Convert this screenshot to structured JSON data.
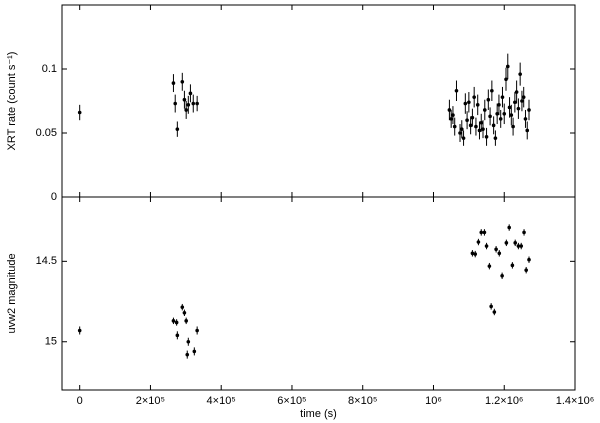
{
  "chart_data": [
    {
      "type": "scatter",
      "ylabel": "XRT rate (count s⁻¹)",
      "color": "#000000",
      "xlim": [
        -50000,
        1400000
      ],
      "ylim": [
        0,
        0.15
      ],
      "yticks": [
        0,
        0.05,
        0.1
      ],
      "x": [
        0,
        265000,
        270000,
        276000,
        290000,
        296000,
        301000,
        307000,
        313000,
        321000,
        332000,
        1045000,
        1050000,
        1055000,
        1060000,
        1065000,
        1075000,
        1080000,
        1085000,
        1090000,
        1095000,
        1100000,
        1105000,
        1110000,
        1115000,
        1120000,
        1125000,
        1130000,
        1135000,
        1140000,
        1145000,
        1150000,
        1155000,
        1160000,
        1165000,
        1170000,
        1175000,
        1180000,
        1185000,
        1190000,
        1195000,
        1200000,
        1205000,
        1210000,
        1215000,
        1220000,
        1225000,
        1230000,
        1235000,
        1240000,
        1245000,
        1250000,
        1255000,
        1260000,
        1265000,
        1270000
      ],
      "values": [
        0.066,
        0.089,
        0.073,
        0.053,
        0.09,
        0.076,
        0.068,
        0.072,
        0.081,
        0.073,
        0.073,
        0.068,
        0.061,
        0.064,
        0.055,
        0.083,
        0.05,
        0.053,
        0.046,
        0.073,
        0.06,
        0.074,
        0.056,
        0.062,
        0.078,
        0.055,
        0.072,
        0.052,
        0.058,
        0.053,
        0.068,
        0.047,
        0.076,
        0.063,
        0.083,
        0.056,
        0.046,
        0.065,
        0.072,
        0.061,
        0.078,
        0.065,
        0.092,
        0.102,
        0.07,
        0.064,
        0.055,
        0.074,
        0.082,
        0.069,
        0.096,
        0.075,
        0.078,
        0.061,
        0.052,
        0.068
      ],
      "errors": [
        0.006,
        0.007,
        0.007,
        0.006,
        0.007,
        0.007,
        0.007,
        0.007,
        0.007,
        0.007,
        0.006,
        0.008,
        0.007,
        0.007,
        0.007,
        0.008,
        0.007,
        0.007,
        0.006,
        0.008,
        0.007,
        0.008,
        0.007,
        0.007,
        0.008,
        0.007,
        0.008,
        0.007,
        0.007,
        0.007,
        0.008,
        0.007,
        0.008,
        0.007,
        0.008,
        0.007,
        0.006,
        0.008,
        0.008,
        0.007,
        0.008,
        0.008,
        0.009,
        0.01,
        0.008,
        0.008,
        0.007,
        0.008,
        0.009,
        0.008,
        0.009,
        0.008,
        0.008,
        0.007,
        0.007,
        0.008
      ]
    },
    {
      "type": "scatter",
      "ylabel": "uvw2 magnitude",
      "xlabel": "time (s)",
      "color": "#000000",
      "xlim": [
        -50000,
        1400000
      ],
      "ylim": [
        15.3,
        14.1
      ],
      "yticks": [
        14.5,
        15
      ],
      "xticks": [
        0,
        {
          "value": 200000,
          "label": "2×10⁵"
        },
        {
          "value": 400000,
          "label": "4×10⁵"
        },
        {
          "value": 600000,
          "label": "6×10⁵"
        },
        {
          "value": 800000,
          "label": "8×10⁵"
        },
        {
          "value": 1000000,
          "label": "10⁶"
        },
        {
          "value": 1200000,
          "label": "1.2×10⁶"
        },
        {
          "value": 1400000,
          "label": "1.4×10⁶"
        }
      ],
      "x": [
        0,
        265000,
        274000,
        276000,
        290000,
        296000,
        301000,
        304000,
        307000,
        324000,
        332000,
        1110000,
        1118000,
        1127000,
        1135000,
        1144000,
        1150000,
        1158000,
        1163000,
        1172000,
        1177000,
        1186000,
        1194000,
        1206000,
        1214000,
        1223000,
        1231000,
        1240000,
        1248000,
        1256000,
        1262000,
        1270000
      ],
      "values": [
        14.93,
        14.87,
        14.88,
        14.96,
        14.785,
        14.82,
        14.87,
        15.08,
        15.0,
        15.06,
        14.93,
        14.45,
        14.455,
        14.38,
        14.32,
        14.32,
        14.405,
        14.53,
        14.78,
        14.815,
        14.425,
        14.45,
        14.59,
        14.385,
        14.29,
        14.525,
        14.385,
        14.405,
        14.405,
        14.32,
        14.555,
        14.49
      ],
      "errors": [
        0.025,
        0.02,
        0.02,
        0.025,
        0.02,
        0.02,
        0.02,
        0.025,
        0.025,
        0.025,
        0.025,
        0.02,
        0.02,
        0.02,
        0.02,
        0.02,
        0.02,
        0.02,
        0.02,
        0.02,
        0.02,
        0.02,
        0.02,
        0.02,
        0.02,
        0.02,
        0.02,
        0.02,
        0.02,
        0.02,
        0.02,
        0.02
      ]
    }
  ]
}
